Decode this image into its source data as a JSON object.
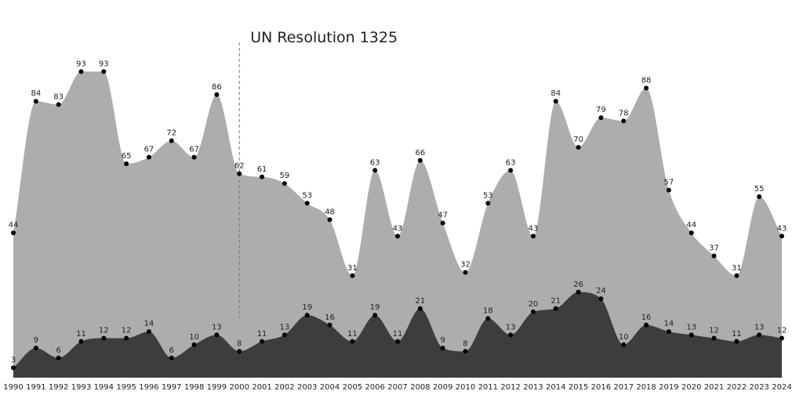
{
  "chart_data": {
    "type": "area",
    "title": "",
    "xlabel": "",
    "ylabel": "",
    "x": [
      1990,
      1991,
      1992,
      1993,
      1994,
      1995,
      1996,
      1997,
      1998,
      1999,
      2000,
      2001,
      2002,
      2003,
      2004,
      2005,
      2006,
      2007,
      2008,
      2009,
      2010,
      2011,
      2012,
      2013,
      2014,
      2015,
      2016,
      2017,
      2018,
      2019,
      2020,
      2021,
      2022,
      2023,
      2024
    ],
    "series": [
      {
        "color": "#adadad",
        "values": [
          44,
          84,
          83,
          93,
          93,
          65,
          67,
          72,
          67,
          86,
          62,
          61,
          59,
          53,
          48,
          31,
          63,
          43,
          66,
          47,
          32,
          53,
          63,
          43,
          84,
          70,
          79,
          78,
          88,
          57,
          44,
          37,
          31,
          55,
          43
        ]
      },
      {
        "color": "#3d3d3d",
        "values": [
          3,
          9,
          6,
          11,
          12,
          12,
          14,
          6,
          10,
          13,
          8,
          11,
          13,
          19,
          16,
          11,
          19,
          11,
          21,
          9,
          8,
          18,
          13,
          20,
          21,
          26,
          24,
          10,
          16,
          14,
          13,
          12,
          11,
          13,
          12
        ]
      }
    ],
    "ylim": [
      0,
      100
    ],
    "grid": false,
    "legend": "none",
    "annotations": [
      {
        "x": 2000,
        "text": "UN Resolution 1325",
        "style": "dashed-vertical-line"
      }
    ]
  }
}
